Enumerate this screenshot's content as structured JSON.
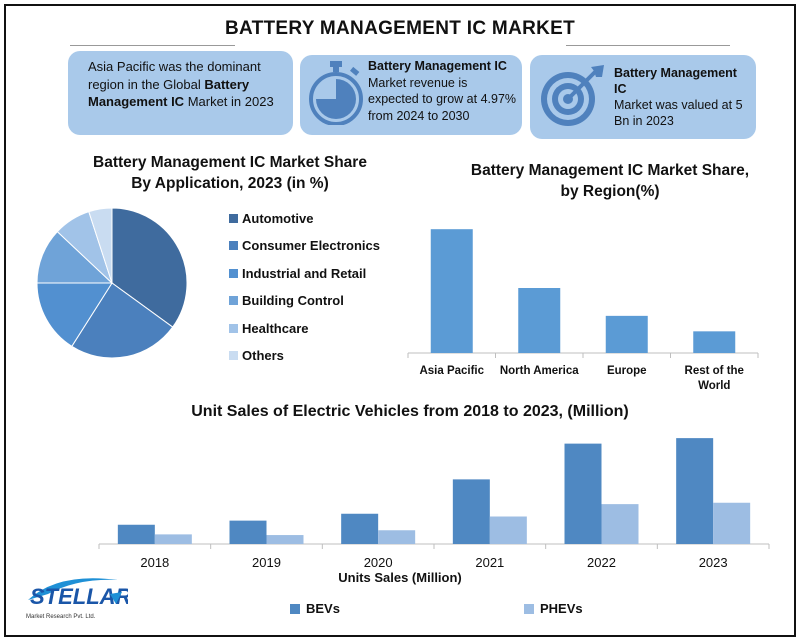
{
  "title": "BATTERY MANAGEMENT IC MARKET",
  "cards": {
    "c1": {
      "pre": "Asia Pacific was the dominant region in the Global ",
      "bold": "Battery Management IC",
      "post": " Market in 2023"
    },
    "c2": {
      "bold": "Battery Management IC",
      "post": "Market revenue is expected to grow at 4.97% from 2024 to 2030"
    },
    "c3": {
      "bold": "Battery Management IC",
      "post": "Market was valued at 5 Bn in 2023"
    }
  },
  "colors": {
    "card_bg": "#a9c9ea",
    "icon": "#4f81bd",
    "bar_region": "#5b9bd5",
    "bev": "#4f88c2",
    "phev": "#9dbde3"
  },
  "icons": {
    "stopwatch": "stopwatch-icon",
    "target": "target-icon"
  },
  "chart_data": [
    {
      "type": "pie",
      "title_line1": "Battery Management  IC Market Share",
      "title_line2": "By Application, 2023 (in %)",
      "slices": [
        {
          "label": "Automotive",
          "value": 35,
          "color": "#3f6b9e"
        },
        {
          "label": "Consumer Electronics",
          "value": 24,
          "color": "#4b80bd"
        },
        {
          "label": "Industrial and Retail",
          "value": 16,
          "color": "#5290d0"
        },
        {
          "label": "Building Control",
          "value": 12,
          "color": "#6fa3d8"
        },
        {
          "label": "Healthcare",
          "value": 8,
          "color": "#a1c3e8"
        },
        {
          "label": "Others",
          "value": 5,
          "color": "#c9dcf1"
        }
      ]
    },
    {
      "type": "bar",
      "title_line1": "Battery Management IC Market Share,",
      "title_line2": "by Region(%)",
      "categories": [
        "Asia Pacific",
        "North America",
        "Europe",
        "Rest of the World"
      ],
      "category_lines": [
        [
          "Asia Pacific"
        ],
        [
          "North America"
        ],
        [
          "Europe"
        ],
        [
          "Rest of the",
          "World"
        ]
      ],
      "values": [
        40,
        21,
        12,
        7
      ],
      "ylim": [
        0,
        42
      ],
      "grid": false
    },
    {
      "type": "bar",
      "title": "Unit Sales of Electric Vehicles from 2018 to 2023, (Million)",
      "xlabel": "Units Sales (Million)",
      "categories": [
        "2018",
        "2019",
        "2020",
        "2021",
        "2022",
        "2023"
      ],
      "series": [
        {
          "name": "BEVs",
          "values": [
            1.4,
            1.7,
            2.2,
            4.7,
            7.3,
            7.7
          ]
        },
        {
          "name": "PHEVs",
          "values": [
            0.7,
            0.65,
            1.0,
            2.0,
            2.9,
            3.0
          ]
        }
      ],
      "ylim": [
        0,
        8.0
      ],
      "grid": false,
      "legend": "bottom"
    }
  ],
  "logo": {
    "name": "STELLAR",
    "sub": "Market Research Pvt. Ltd."
  }
}
